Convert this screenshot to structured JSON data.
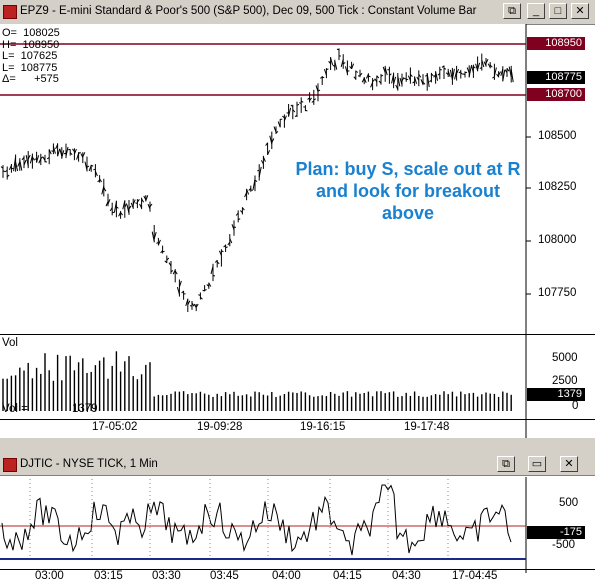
{
  "top_window": {
    "title": "EPZ9 - E-mini Standard & Poor's 500 (S&P 500), Dec 09, 500 Tick : Constant Volume Bar",
    "buttons": {
      "restore": "⧉",
      "minimize": "_",
      "maximize": "□",
      "close": "✕"
    },
    "ohlc": [
      "O=  108025",
      "H=  108950",
      "L=  107625",
      "L=  108775",
      "Δ=      +575"
    ],
    "price_axis": [
      "108500",
      "108250",
      "108000",
      "107750"
    ],
    "price_tags": {
      "high": "108950",
      "last": "108775",
      "low": "108700"
    },
    "annotation": "Plan: buy S, scale out at R\nand look for breakout\nabove",
    "volume_label": "Vol",
    "volume_readout": {
      "label": "Vol =",
      "value": "1379"
    },
    "volume_axis": [
      "5000",
      "2500"
    ],
    "volume_tag": "1379",
    "volume_zero": "0",
    "time_axis": [
      "17-05:02",
      "19-09:28",
      "19-16:15",
      "19-17:48"
    ],
    "colors": {
      "high_line": "#800020",
      "low_line": "#800020",
      "tag_bg": "#800020",
      "last_tag_bg": "#000000"
    }
  },
  "bottom_window": {
    "title": "DJTIC - NYSE TICK, 1 Min",
    "buttons": {
      "restore": "⧉",
      "minimize": "▭",
      "close": "✕"
    },
    "axis": [
      "500",
      "-500"
    ],
    "value_tag": "-175",
    "time_axis": [
      "03:00",
      "03:15",
      "03:30",
      "03:45",
      "04:00",
      "04:15",
      "04:30",
      "17-04:45"
    ]
  }
}
